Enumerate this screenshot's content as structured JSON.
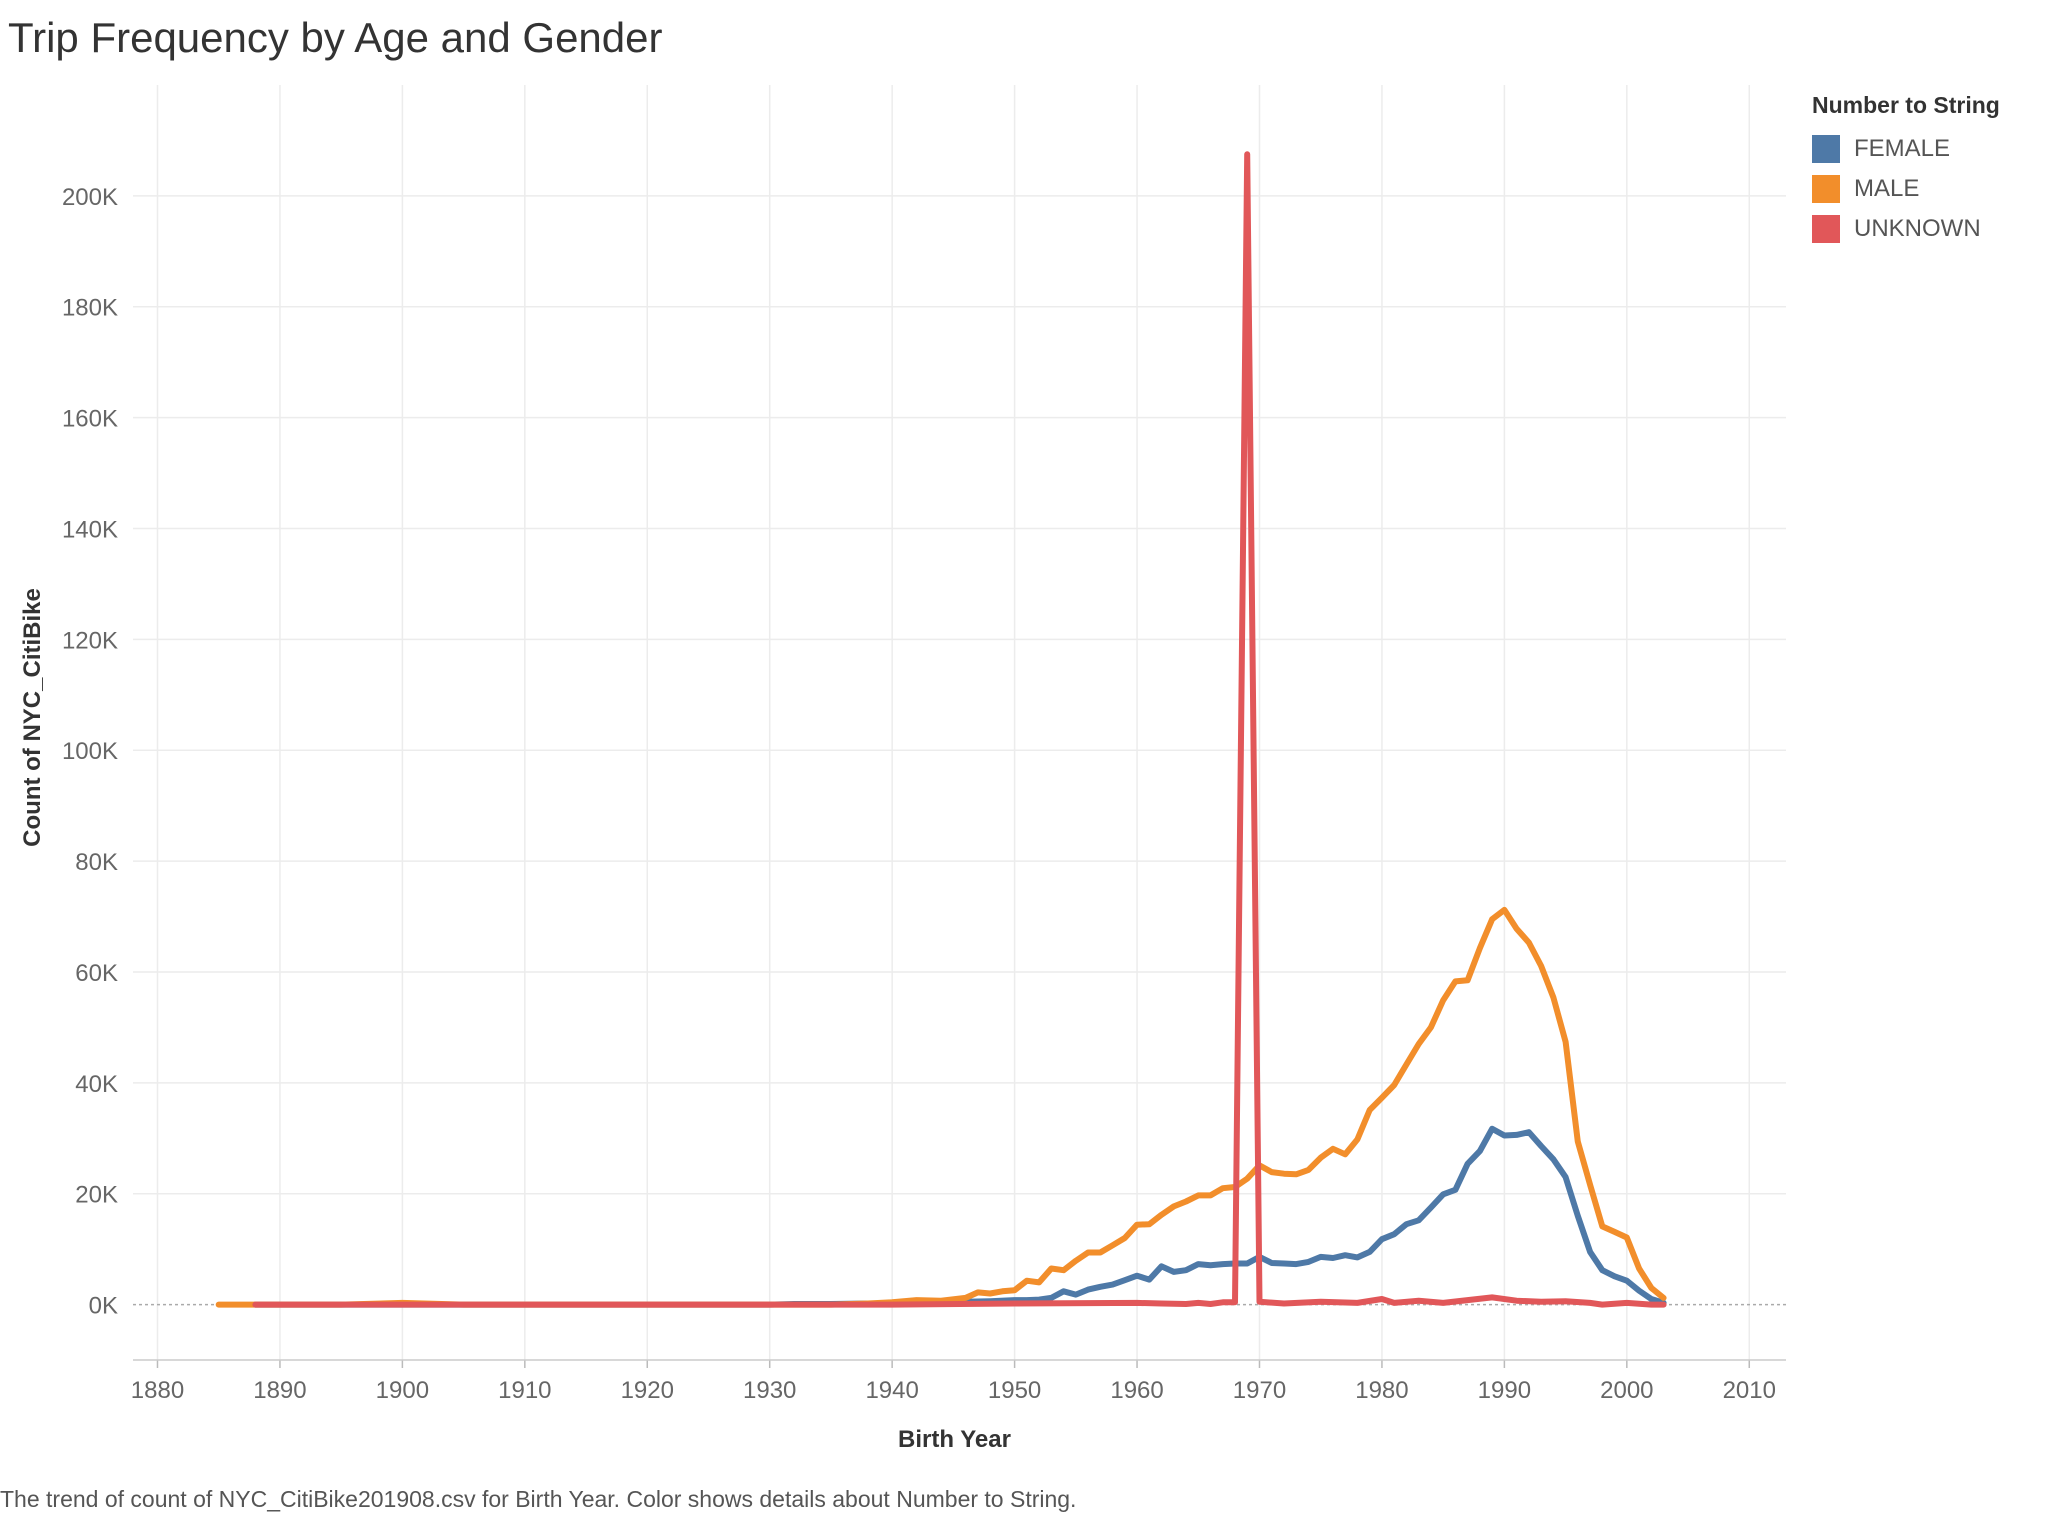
{
  "header": {
    "title": "Trip Frequency by Age and Gender"
  },
  "footer": {
    "caption": "The trend of count of NYC_CitiBike201908.csv for Birth Year.  Color shows details about Number to String."
  },
  "legend": {
    "title": "Number to String"
  },
  "chart_data": {
    "type": "line",
    "title": "Trip Frequency by Age and Gender",
    "xlabel": "Birth Year",
    "ylabel": "Count of NYC_CitiBike",
    "xlim": [
      1878,
      2013
    ],
    "ylim": [
      -10000,
      220000
    ],
    "x_ticks": [
      1880,
      1890,
      1900,
      1910,
      1920,
      1930,
      1940,
      1950,
      1960,
      1970,
      1980,
      1990,
      2000,
      2010
    ],
    "x_tick_labels": [
      "1880",
      "1890",
      "1900",
      "1910",
      "1920",
      "1930",
      "1940",
      "1950",
      "1960",
      "1970",
      "1980",
      "1990",
      "2000",
      "2010"
    ],
    "y_ticks": [
      0,
      20000,
      40000,
      60000,
      80000,
      100000,
      120000,
      140000,
      160000,
      180000,
      200000
    ],
    "y_tick_labels": [
      "0K",
      "20K",
      "40K",
      "60K",
      "80K",
      "100K",
      "120K",
      "140K",
      "160K",
      "180K",
      "200K"
    ],
    "grid": true,
    "zero_line": "dotted",
    "legend_position": "top-right",
    "series": [
      {
        "name": "FEMALE",
        "color": "#4e79a7",
        "x": [
          1888,
          1890,
          1895,
          1900,
          1905,
          1910,
          1915,
          1920,
          1925,
          1930,
          1932,
          1935,
          1938,
          1940,
          1942,
          1944,
          1946,
          1948,
          1950,
          1951,
          1952,
          1953,
          1954,
          1955,
          1956,
          1957,
          1958,
          1959,
          1960,
          1961,
          1962,
          1963,
          1964,
          1965,
          1966,
          1967,
          1968,
          1969,
          1970,
          1971,
          1972,
          1973,
          1974,
          1975,
          1976,
          1977,
          1978,
          1979,
          1980,
          1981,
          1982,
          1983,
          1984,
          1985,
          1986,
          1987,
          1988,
          1989,
          1990,
          1991,
          1992,
          1993,
          1994,
          1995,
          1996,
          1997,
          1998,
          1999,
          2000,
          2001,
          2002,
          2003
        ],
        "y": [
          0,
          0,
          0,
          0,
          0,
          0,
          0,
          0,
          0,
          0,
          100,
          100,
          200,
          200,
          300,
          400,
          500,
          600,
          800,
          800,
          900,
          1200,
          2400,
          1800,
          2700,
          3200,
          3600,
          4400,
          5200,
          4500,
          6900,
          5900,
          6200,
          7300,
          7100,
          7300,
          7400,
          7400,
          8600,
          7500,
          7400,
          7300,
          7700,
          8600,
          8400,
          8900,
          8500,
          9500,
          11800,
          12700,
          14500,
          15200,
          17500,
          19900,
          20700,
          25400,
          27700,
          31700,
          30500,
          30600,
          31100,
          28600,
          26200,
          23000,
          16000,
          9500,
          6200,
          5100,
          4300,
          2500,
          1000,
          300
        ]
      },
      {
        "name": "MALE",
        "color": "#f28e2b",
        "x": [
          1885,
          1888,
          1890,
          1895,
          1900,
          1905,
          1910,
          1915,
          1920,
          1925,
          1930,
          1935,
          1938,
          1940,
          1942,
          1944,
          1946,
          1947,
          1948,
          1949,
          1950,
          1951,
          1952,
          1953,
          1954,
          1955,
          1956,
          1957,
          1958,
          1959,
          1960,
          1961,
          1962,
          1963,
          1964,
          1965,
          1966,
          1967,
          1968,
          1969,
          1970,
          1971,
          1972,
          1973,
          1974,
          1975,
          1976,
          1977,
          1978,
          1979,
          1980,
          1981,
          1982,
          1983,
          1984,
          1985,
          1986,
          1987,
          1988,
          1989,
          1990,
          1991,
          1992,
          1993,
          1994,
          1995,
          1996,
          1997,
          1998,
          1999,
          2000,
          2001,
          2002,
          2003
        ],
        "y": [
          0,
          0,
          0,
          0,
          300,
          0,
          0,
          0,
          0,
          0,
          0,
          0,
          200,
          400,
          800,
          700,
          1200,
          2200,
          2000,
          2400,
          2600,
          4300,
          4000,
          6500,
          6200,
          7900,
          9400,
          9400,
          10700,
          12000,
          14400,
          14500,
          16200,
          17700,
          18600,
          19700,
          19700,
          21000,
          21200,
          22700,
          25100,
          23900,
          23600,
          23500,
          24300,
          26500,
          28100,
          27100,
          29800,
          35100,
          37300,
          39600,
          43300,
          47000,
          50000,
          54900,
          58300,
          58500,
          64300,
          69500,
          71200,
          67800,
          65300,
          61100,
          55400,
          47400,
          29400,
          21600,
          14100,
          13100,
          12100,
          6500,
          3000,
          1200
        ]
      },
      {
        "name": "UNKNOWN",
        "color": "#e15759",
        "x": [
          1888,
          1900,
          1920,
          1940,
          1950,
          1960,
          1962,
          1964,
          1965,
          1966,
          1967,
          1968,
          1969,
          1970,
          1972,
          1975,
          1978,
          1980,
          1981,
          1983,
          1985,
          1987,
          1989,
          1991,
          1993,
          1995,
          1997,
          1998,
          2000,
          2002,
          2003
        ],
        "y": [
          0,
          0,
          0,
          0,
          200,
          300,
          200,
          100,
          300,
          100,
          400,
          400,
          207500,
          500,
          200,
          500,
          300,
          1000,
          300,
          700,
          300,
          800,
          1300,
          700,
          500,
          600,
          300,
          0,
          300,
          0,
          0
        ]
      }
    ]
  }
}
